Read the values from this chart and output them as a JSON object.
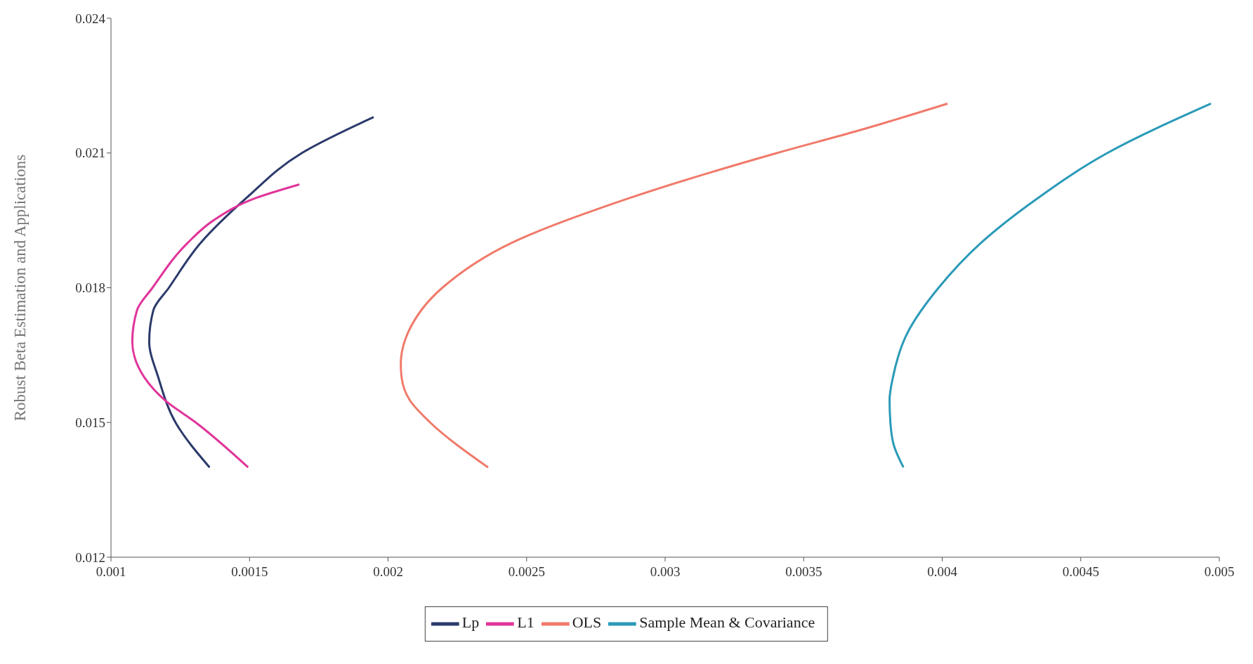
{
  "chart_data": {
    "type": "line",
    "ylabel": "Robust Beta Estimation and Applications",
    "xlim": [
      0.001,
      0.005
    ],
    "xticks": [
      0.001,
      0.0015,
      0.002,
      0.0025,
      0.003,
      0.0035,
      0.004,
      0.0045,
      0.005
    ],
    "ylim": [
      0.012,
      0.024
    ],
    "yticks": [
      0.012,
      0.015,
      0.018,
      0.021,
      0.024
    ],
    "grid": false,
    "legend": "bottom",
    "marker": "none",
    "line_style": "solid",
    "series": [
      {
        "name": "Lp",
        "color": "#2b3a6b",
        "x": [
          0.001356,
          0.001233,
          0.001171,
          0.001138,
          0.001153,
          0.001209,
          0.001324,
          0.001489,
          0.001689,
          0.001948
        ],
        "values": [
          0.014,
          0.015,
          0.016,
          0.0168,
          0.0175,
          0.018,
          0.019,
          0.02,
          0.021,
          0.0218
        ]
      },
      {
        "name": "L1",
        "color": "#e0359a",
        "x": [
          0.001495,
          0.001306,
          0.001194,
          0.001121,
          0.001077,
          0.001094,
          0.00115,
          0.001277,
          0.00137,
          0.001524,
          0.00168
        ],
        "values": [
          0.014,
          0.015,
          0.0155,
          0.016,
          0.0168,
          0.0175,
          0.018,
          0.019,
          0.0195,
          0.02,
          0.0203
        ]
      },
      {
        "name": "OLS",
        "color": "#f07a6a",
        "x": [
          0.002361,
          0.002152,
          0.002078,
          0.002049,
          0.002046,
          0.002072,
          0.002196,
          0.002446,
          0.002873,
          0.003404,
          0.003698,
          0.004019
        ],
        "values": [
          0.014,
          0.015,
          0.0155,
          0.016,
          0.0163,
          0.017,
          0.018,
          0.019,
          0.02,
          0.021,
          0.0215,
          0.0221
        ]
      },
      {
        "name": "Sample Mean & Covariance",
        "color": "#2a9ab8",
        "x": [
          0.00386,
          0.003825,
          0.003813,
          0.00381,
          0.003822,
          0.003875,
          0.003987,
          0.00414,
          0.004346,
          0.004596,
          0.00497
        ],
        "values": [
          0.014,
          0.0145,
          0.015,
          0.0155,
          0.016,
          0.017,
          0.018,
          0.019,
          0.02,
          0.021,
          0.0221
        ]
      }
    ]
  }
}
